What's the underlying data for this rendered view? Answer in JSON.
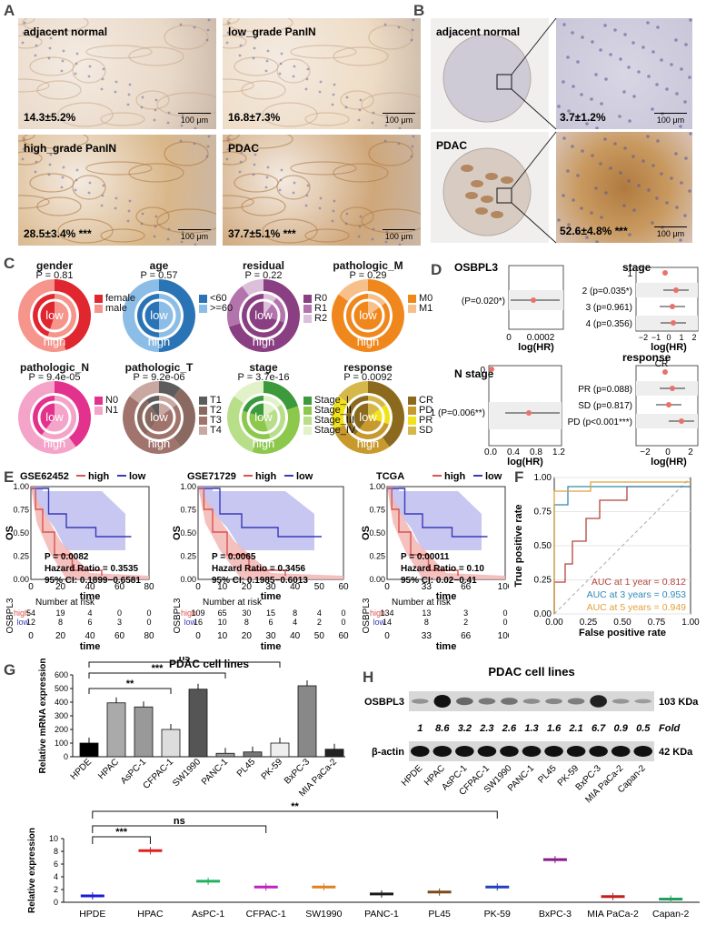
{
  "panel_labels": {
    "A": "A",
    "B": "B",
    "C": "C",
    "D": "D",
    "E": "E",
    "F": "F",
    "G": "G",
    "H": "H"
  },
  "panelA": {
    "images": [
      {
        "title": "adjacent normal",
        "value": "14.3±5.2%",
        "stars": "",
        "scale": "100 μm",
        "color": "#e9d9c8"
      },
      {
        "title": "low_grade PanIN",
        "value": "16.8±7.3%",
        "stars": "",
        "scale": "100 μm",
        "color": "#eedcc5"
      },
      {
        "title": "high_grade PanIN",
        "value": "28.5±3.4%",
        "stars": "***",
        "scale": "100 μm",
        "color": "#d9b78a"
      },
      {
        "title": "PDAC",
        "value": "37.7±5.1%",
        "stars": "***",
        "scale": "100 μm",
        "color": "#cfa77a"
      }
    ]
  },
  "panelB": {
    "rows": [
      {
        "title": "adjacent normal",
        "value": "3.7±1.2%",
        "stars": "",
        "scale": "100 μm"
      },
      {
        "title": "PDAC",
        "value": "52.6±4.8%",
        "stars": "***",
        "scale": "100 μm"
      }
    ]
  },
  "panelC": {
    "donuts": [
      {
        "title": "gender",
        "p": "P = 0.81",
        "low": "low",
        "high": "high",
        "legend": [
          {
            "label": "female",
            "color": "#e0262f"
          },
          {
            "label": "male",
            "color": "#f5958c"
          }
        ]
      },
      {
        "title": "age",
        "p": "P = 0.57",
        "low": "low",
        "high": "high",
        "legend": [
          {
            "label": "<60",
            "color": "#2a74b6"
          },
          {
            "label": ">=60",
            "color": "#8cbde6"
          }
        ]
      },
      {
        "title": "residual",
        "p": "P = 0.22",
        "low": "low",
        "high": "high",
        "legend": [
          {
            "label": "R0",
            "color": "#8a3f82"
          },
          {
            "label": "R1",
            "color": "#b374ad"
          },
          {
            "label": "R2",
            "color": "#dcc0d9"
          }
        ]
      },
      {
        "title": "pathologic_M",
        "p": "P = 0.29",
        "low": "low",
        "high": "high",
        "legend": [
          {
            "label": "M0",
            "color": "#f0871c"
          },
          {
            "label": "M1",
            "color": "#f7c08a"
          }
        ]
      },
      {
        "title": "pathologic_N",
        "p": "P = 9.4e-05",
        "low": "low",
        "high": "high",
        "legend": [
          {
            "label": "N0",
            "color": "#e2328d"
          },
          {
            "label": "N1",
            "color": "#f4a3c9"
          }
        ]
      },
      {
        "title": "pathologic_T",
        "p": "P = 9.2e-06",
        "low": "low",
        "high": "high",
        "legend": [
          {
            "label": "T1",
            "color": "#5c5c5c"
          },
          {
            "label": "T2",
            "color": "#8a6a60"
          },
          {
            "label": "T3",
            "color": "#a0736c"
          },
          {
            "label": "T4",
            "color": "#c8a8a0"
          }
        ]
      },
      {
        "title": "stage",
        "p": "P = 3.7e-16",
        "low": "low",
        "high": "high",
        "legend": [
          {
            "label": "Stage_I",
            "color": "#3c9a3c"
          },
          {
            "label": "Stage_II",
            "color": "#8cc84b"
          },
          {
            "label": "Stage_III",
            "color": "#b8de8a"
          },
          {
            "label": "Stage_IV",
            "color": "#e2f2c8"
          }
        ]
      },
      {
        "title": "response",
        "p": "P = 0.0092",
        "low": "low",
        "high": "high",
        "legend": [
          {
            "label": "CR",
            "color": "#8b6a1e"
          },
          {
            "label": "PD",
            "color": "#c89a2e"
          },
          {
            "label": "PR",
            "color": "#f2e21a"
          },
          {
            "label": "SD",
            "color": "#d6b84a"
          }
        ]
      }
    ]
  },
  "panelD": {
    "osbpl3": {
      "title": "OSBPL3",
      "row": "(P=0.020*)",
      "xticks": [
        "0",
        "0.0002"
      ],
      "xlabel": "log(HR)"
    },
    "stage": {
      "title": "stage",
      "rows": [
        "1",
        "2 (p=0.035*)",
        "3 (p=0.961)",
        "4 (p=0.356)"
      ],
      "xticks": [
        "−2",
        "−1",
        "0",
        "1",
        "2"
      ],
      "xlabel": "log(HR)"
    },
    "nstage": {
      "title": "N stage",
      "rows": [
        "0",
        "1 (P=0.006**)"
      ],
      "xticks": [
        "0.0",
        "0.4",
        "0.8",
        "1.2"
      ],
      "xlabel": "log(HR)"
    },
    "response": {
      "title": "response",
      "rows": [
        "CR",
        "PR (p=0.088)",
        "SD (p=0.817)",
        "PD (p<0.001***)"
      ],
      "xticks": [
        "−2",
        "0",
        "2"
      ],
      "xlabel": "log(HR)"
    }
  },
  "panelE": {
    "plots": [
      {
        "dataset": "GSE62452",
        "legend_high": "high",
        "legend_low": "low",
        "p": "P = 0.0082",
        "hr": "Hazard Ratio = 0.3535",
        "ci": "95% CI: 0.1899−0.6581",
        "xticks": [
          "0",
          "20",
          "40",
          "60",
          "80"
        ],
        "yticks": [
          "0.00",
          "0.25",
          "0.50",
          "0.75",
          "1.00"
        ],
        "xlabel": "time",
        "ylabel": "OS",
        "risk_title": "Number at risk",
        "risk_high": [
          "54",
          "19",
          "4",
          "0",
          "0"
        ],
        "risk_low": [
          "12",
          "8",
          "6",
          "3",
          "0"
        ],
        "risk_ylabel": "OSBPL3"
      },
      {
        "dataset": "GSE71729",
        "legend_high": "high",
        "legend_low": "low",
        "p": "P = 0.0065",
        "hr": "Hazard Ratio = 0.3456",
        "ci": "95% CI: 0.1985−0.6013",
        "xticks": [
          "0",
          "10",
          "20",
          "30",
          "40",
          "50",
          "60"
        ],
        "yticks": [
          "0.00",
          "0.25",
          "0.50",
          "0.75",
          "1.00"
        ],
        "xlabel": "time",
        "ylabel": "OS",
        "risk_title": "Number at risk",
        "risk_high": [
          "109",
          "65",
          "30",
          "15",
          "8",
          "4",
          "0"
        ],
        "risk_low": [
          "16",
          "10",
          "8",
          "6",
          "4",
          "2",
          "0"
        ],
        "risk_ylabel": "OSBPL3"
      },
      {
        "dataset": "TCGA",
        "legend_high": "high",
        "legend_low": "low",
        "p": "P = 0.00011",
        "hr": "Hazard Ratio = 0.10",
        "ci": "95% CI: 0.02−0.41",
        "xticks": [
          "0",
          "33",
          "66",
          "100"
        ],
        "yticks": [
          "0.00",
          "0.25",
          "0.50",
          "0.75",
          "1.00"
        ],
        "xlabel": "time",
        "ylabel": "OS",
        "risk_title": "Number at risk",
        "risk_high": [
          "134",
          "13",
          "3",
          "0"
        ],
        "risk_low": [
          "14",
          "8",
          "2",
          "0"
        ],
        "risk_ylabel": "OSBPL3"
      }
    ],
    "risk_labels": {
      "high": "high",
      "low": "low"
    }
  },
  "panelF": {
    "xlabel": "False positive rate",
    "ylabel": "True positive rate",
    "xticks": [
      "0.00",
      "0.25",
      "0.50",
      "0.75",
      "1.00"
    ],
    "yticks": [
      "0.00",
      "0.25",
      "0.50",
      "0.75",
      "1.00"
    ],
    "aucs": [
      {
        "label": "AUC at 1 year = 0.812",
        "color": "#b5443a"
      },
      {
        "label": "AUC at 3 years = 0.953",
        "color": "#2f8bb5"
      },
      {
        "label": "AUC at 5 years = 0.949",
        "color": "#e0a23a"
      }
    ]
  },
  "chart_data": [
    {
      "type": "bar",
      "title": "PDAC cell lines",
      "ylabel": "Relative mRNA expression",
      "ylim": [
        0,
        600
      ],
      "categories": [
        "HPDE",
        "HPAC",
        "AsPC-1",
        "CFPAC-1",
        "SW1990",
        "PANC-1",
        "PL45",
        "PK-59",
        "BxPC-3",
        "MIA PaCa-2"
      ],
      "values": [
        100,
        395,
        365,
        200,
        495,
        25,
        35,
        100,
        520,
        55
      ],
      "yticks": [
        "0",
        "100",
        "200",
        "300",
        "400",
        "500",
        "600"
      ],
      "annotations": [
        "***",
        "**",
        "ns"
      ]
    },
    {
      "type": "scatter",
      "ylabel": "Relative expression",
      "ylim": [
        0,
        10
      ],
      "categories": [
        "HPDE",
        "HPAC",
        "AsPC-1",
        "CFPAC-1",
        "SW1990",
        "PANC-1",
        "PL45",
        "PK-59",
        "BxPC-3",
        "MIA PaCa-2",
        "Capan-2"
      ],
      "values": [
        1.0,
        8.1,
        3.3,
        2.4,
        2.4,
        1.3,
        1.6,
        2.4,
        6.7,
        0.9,
        0.5
      ],
      "colors": [
        "#1a1ad8",
        "#e02020",
        "#20b060",
        "#c020c0",
        "#e08020",
        "#1a1a1a",
        "#7a4a1a",
        "#2040c0",
        "#8a1a8a",
        "#c02020",
        "#20a060"
      ],
      "yticks": [
        "0",
        "2",
        "4",
        "6",
        "8",
        "10"
      ],
      "annotations": [
        "***",
        "ns",
        "**"
      ]
    },
    {
      "type": "table",
      "title": "PDAC cell lines",
      "rows": [
        "OSBPL3",
        "β-actin"
      ],
      "sizes": [
        "103 KDa",
        "42 KDa"
      ],
      "lanes": [
        "HPDE",
        "HPAC",
        "AsPC-1",
        "CFPAC-1",
        "SW1990",
        "PANC-1",
        "PL45",
        "PK-59",
        "BxPC-3",
        "MIA PaCa-2",
        "Capan-2"
      ],
      "fold": [
        "1",
        "8.6",
        "3.2",
        "2.3",
        "2.6",
        "1.3",
        "1.6",
        "2.1",
        "6.7",
        "0.9",
        "0.5"
      ],
      "fold_label": "Fold"
    }
  ]
}
